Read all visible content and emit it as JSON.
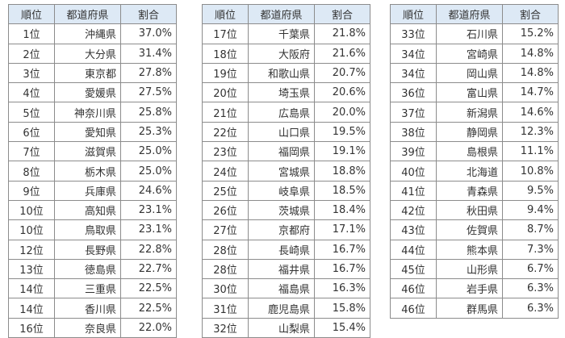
{
  "headers": {
    "rank": "順位",
    "prefecture": "都道府県",
    "ratio": "割合"
  },
  "tables": [
    {
      "rows": [
        [
          "1位",
          "沖縄県",
          "37.0%"
        ],
        [
          "2位",
          "大分県",
          "31.4%"
        ],
        [
          "3位",
          "東京都",
          "27.8%"
        ],
        [
          "4位",
          "愛媛県",
          "27.5%"
        ],
        [
          "5位",
          "神奈川県",
          "25.8%"
        ],
        [
          "6位",
          "愛知県",
          "25.3%"
        ],
        [
          "7位",
          "滋賀県",
          "25.0%"
        ],
        [
          "8位",
          "栃木県",
          "25.0%"
        ],
        [
          "9位",
          "兵庫県",
          "24.6%"
        ],
        [
          "10位",
          "高知県",
          "23.1%"
        ],
        [
          "10位",
          "鳥取県",
          "23.1%"
        ],
        [
          "12位",
          "長野県",
          "22.8%"
        ],
        [
          "13位",
          "徳島県",
          "22.7%"
        ],
        [
          "14位",
          "三重県",
          "22.5%"
        ],
        [
          "14位",
          "香川県",
          "22.5%"
        ],
        [
          "16位",
          "奈良県",
          "22.0%"
        ]
      ]
    },
    {
      "rows": [
        [
          "17位",
          "千葉県",
          "21.8%"
        ],
        [
          "18位",
          "大阪府",
          "21.6%"
        ],
        [
          "19位",
          "和歌山県",
          "20.7%"
        ],
        [
          "20位",
          "埼玉県",
          "20.6%"
        ],
        [
          "21位",
          "広島県",
          "20.0%"
        ],
        [
          "22位",
          "山口県",
          "19.5%"
        ],
        [
          "23位",
          "福岡県",
          "19.1%"
        ],
        [
          "24位",
          "宮城県",
          "18.8%"
        ],
        [
          "25位",
          "岐阜県",
          "18.5%"
        ],
        [
          "26位",
          "茨城県",
          "18.4%"
        ],
        [
          "27位",
          "京都府",
          "17.1%"
        ],
        [
          "28位",
          "長崎県",
          "16.7%"
        ],
        [
          "28位",
          "福井県",
          "16.7%"
        ],
        [
          "30位",
          "福島県",
          "16.3%"
        ],
        [
          "31位",
          "鹿児島県",
          "15.8%"
        ],
        [
          "32位",
          "山梨県",
          "15.4%"
        ]
      ]
    },
    {
      "rows": [
        [
          "33位",
          "石川県",
          "15.2%"
        ],
        [
          "34位",
          "宮崎県",
          "14.8%"
        ],
        [
          "34位",
          "岡山県",
          "14.8%"
        ],
        [
          "36位",
          "富山県",
          "14.7%"
        ],
        [
          "37位",
          "新潟県",
          "14.6%"
        ],
        [
          "38位",
          "静岡県",
          "12.3%"
        ],
        [
          "39位",
          "島根県",
          "11.1%"
        ],
        [
          "40位",
          "北海道",
          "10.8%"
        ],
        [
          "41位",
          "青森県",
          "9.5%"
        ],
        [
          "42位",
          "秋田県",
          "9.4%"
        ],
        [
          "43位",
          "佐賀県",
          "8.7%"
        ],
        [
          "44位",
          "熊本県",
          "7.3%"
        ],
        [
          "45位",
          "山形県",
          "6.7%"
        ],
        [
          "46位",
          "岩手県",
          "6.3%"
        ],
        [
          "46位",
          "群馬県",
          "6.3%"
        ]
      ]
    }
  ],
  "colors": {
    "header_bg": "#dde9f5",
    "border": "#8c8c8c"
  }
}
